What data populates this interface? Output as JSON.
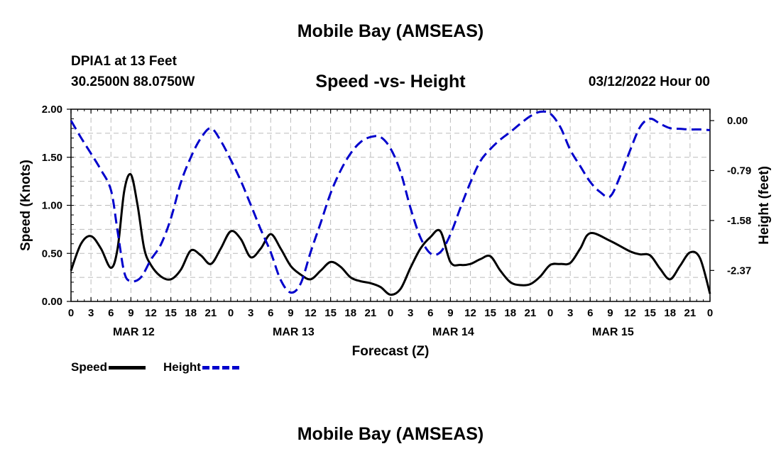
{
  "title": "Mobile Bay (AMSEAS)",
  "title_repeat": "Mobile Bay (AMSEAS)",
  "station": "DPIA1 at 13 Feet",
  "coordinates": "30.2500N  88.0750W",
  "subtitle": "Speed -vs- Height",
  "datetime": "03/12/2022 Hour 00",
  "colors": {
    "speed": "#000000",
    "height": "#0000cc",
    "grid": "#bbbbbb"
  },
  "chart_data": {
    "type": "line",
    "xlabel": "Forecast (Z)",
    "ylabel_left": "Speed (Knots)",
    "ylabel_right": "Height (feet)",
    "x_hours_range": [
      0,
      96
    ],
    "x_tick_labels": [
      "0",
      "3",
      "6",
      "9",
      "12",
      "15",
      "18",
      "21",
      "0",
      "3",
      "6",
      "9",
      "12",
      "15",
      "18",
      "21",
      "0",
      "3",
      "6",
      "9",
      "12",
      "15",
      "18",
      "21",
      "0",
      "3",
      "6",
      "9",
      "12",
      "15",
      "18",
      "21",
      "0"
    ],
    "day_labels": [
      {
        "label": "MAR 12",
        "hour": 9
      },
      {
        "label": "MAR 13",
        "hour": 33
      },
      {
        "label": "MAR 14",
        "hour": 57
      },
      {
        "label": "MAR 15",
        "hour": 81
      }
    ],
    "ylim_left": [
      0,
      2
    ],
    "yticks_left": [
      "0.00",
      "0.50",
      "1.00",
      "1.50",
      "2.00"
    ],
    "ylim_right": [
      -2.86,
      0.18
    ],
    "yticks_right": [
      {
        "label": "0.00",
        "value": 0.0
      },
      {
        "label": "-0.79",
        "value": -0.79
      },
      {
        "label": "-1.58",
        "value": -1.58
      },
      {
        "label": "-2.37",
        "value": -2.37
      }
    ],
    "series": [
      {
        "name": "Speed",
        "axis": "left",
        "hours": [
          0,
          1.5,
          3,
          4.5,
          6,
          7,
          8,
          9,
          10,
          11,
          12,
          13.5,
          15,
          16.5,
          18,
          19.5,
          21,
          22.5,
          24,
          25.5,
          27,
          28.5,
          30,
          31.5,
          33,
          34.5,
          36,
          37.5,
          39,
          40.5,
          42,
          43.5,
          45,
          46.5,
          48,
          49.5,
          51,
          52.5,
          54,
          55.5,
          57,
          58.5,
          60,
          61.5,
          63,
          64.5,
          66,
          67.5,
          69,
          70.5,
          72,
          73.5,
          75,
          76.5,
          78,
          81,
          84,
          85.5,
          87,
          88.5,
          90,
          91.5,
          93,
          94.5,
          96
        ],
        "values": [
          0.32,
          0.6,
          0.68,
          0.55,
          0.35,
          0.55,
          1.15,
          1.32,
          1.0,
          0.55,
          0.38,
          0.26,
          0.23,
          0.33,
          0.53,
          0.48,
          0.39,
          0.55,
          0.73,
          0.65,
          0.46,
          0.55,
          0.7,
          0.55,
          0.37,
          0.28,
          0.23,
          0.32,
          0.41,
          0.36,
          0.25,
          0.21,
          0.19,
          0.15,
          0.07,
          0.13,
          0.35,
          0.55,
          0.67,
          0.73,
          0.41,
          0.38,
          0.39,
          0.44,
          0.47,
          0.32,
          0.2,
          0.17,
          0.18,
          0.26,
          0.38,
          0.39,
          0.4,
          0.55,
          0.71,
          0.63,
          0.52,
          0.49,
          0.48,
          0.34,
          0.23,
          0.37,
          0.51,
          0.45,
          0.08
        ]
      },
      {
        "name": "Height",
        "axis": "right",
        "hours": [
          0,
          1.5,
          3,
          4.5,
          6,
          7,
          8,
          9,
          10.5,
          12,
          13.5,
          15,
          16.5,
          18,
          19.5,
          21,
          22.5,
          24,
          25.5,
          27,
          28.5,
          30,
          31.5,
          33,
          34.5,
          36,
          37.5,
          39,
          40.5,
          42,
          43.5,
          45,
          46.5,
          48,
          49.5,
          51,
          52.5,
          54,
          55.5,
          57,
          58.5,
          60,
          61.5,
          63,
          64.5,
          66,
          67.5,
          69,
          70.5,
          72,
          73.5,
          75,
          76.5,
          78,
          79.5,
          81,
          82.5,
          84,
          85.5,
          87,
          88.5,
          90,
          91.5,
          93,
          94.5,
          96
        ],
        "values": [
          0.0,
          -0.27,
          -0.52,
          -0.78,
          -1.1,
          -1.75,
          -2.4,
          -2.54,
          -2.48,
          -2.2,
          -1.96,
          -1.55,
          -0.98,
          -0.58,
          -0.28,
          -0.12,
          -0.32,
          -0.62,
          -0.95,
          -1.33,
          -1.72,
          -2.08,
          -2.52,
          -2.72,
          -2.58,
          -2.08,
          -1.62,
          -1.15,
          -0.79,
          -0.52,
          -0.34,
          -0.26,
          -0.26,
          -0.44,
          -0.81,
          -1.38,
          -1.85,
          -2.1,
          -2.08,
          -1.8,
          -1.38,
          -0.98,
          -0.64,
          -0.45,
          -0.3,
          -0.18,
          -0.05,
          0.07,
          0.14,
          0.11,
          -0.1,
          -0.46,
          -0.72,
          -0.97,
          -1.13,
          -1.2,
          -0.88,
          -0.47,
          -0.1,
          0.03,
          -0.05,
          -0.12,
          -0.13,
          -0.14,
          -0.14,
          -0.15
        ]
      }
    ],
    "legend": [
      {
        "label": "Speed",
        "style": "solid"
      },
      {
        "label": "Height",
        "style": "dashed"
      }
    ]
  }
}
